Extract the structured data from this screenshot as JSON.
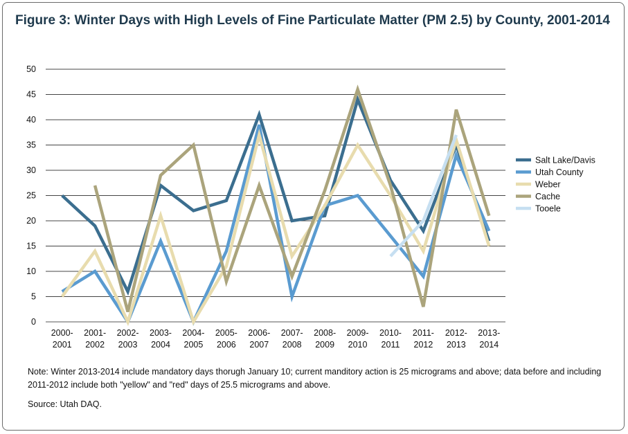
{
  "title": "Figure 3: Winter Days with High Levels of Fine Particulate Matter (PM 2.5) by County, 2001-2014",
  "note": "Note: Winter 2013-2014 include mandatory days thorugh January 10; current manditory action is 25 micrograms and above; data before and including 2011-2012 include both \"yellow\" and \"red\" days of 25.5 micrograms and above.",
  "source": "Source: Utah DAQ.",
  "chart_data": {
    "type": "line",
    "title": "Figure 3: Winter Days with High Levels of Fine Particulate Matter (PM 2.5) by County, 2001-2014",
    "xlabel": "",
    "ylabel": "",
    "ylim": [
      0,
      50
    ],
    "yticks": [
      0,
      5,
      10,
      15,
      20,
      25,
      30,
      35,
      40,
      45,
      50
    ],
    "grid": true,
    "legend_position": "right",
    "categories": [
      [
        "2000-",
        "2001"
      ],
      [
        "2001-",
        "2002"
      ],
      [
        "2002-",
        "2003"
      ],
      [
        "2003-",
        "2004"
      ],
      [
        "2004-",
        "2005"
      ],
      [
        "2005-",
        "2006"
      ],
      [
        "2006-",
        "2007"
      ],
      [
        "2007-",
        "2008"
      ],
      [
        "2008-",
        "2009"
      ],
      [
        "2009-",
        "2010"
      ],
      [
        "2010-",
        "2011"
      ],
      [
        "2011-",
        "2012"
      ],
      [
        "2012-",
        "2013"
      ],
      [
        "2013-",
        "2014"
      ]
    ],
    "series": [
      {
        "name": "Salt Lake/Davis",
        "color": "#3b6e8f",
        "values": [
          25,
          19,
          6,
          27,
          22,
          24,
          41,
          20,
          21,
          44,
          28,
          18,
          35,
          16
        ]
      },
      {
        "name": "Utah County",
        "color": "#5a9bd0",
        "values": [
          6,
          10,
          0,
          16,
          0,
          14,
          39,
          5,
          23,
          25,
          17,
          9,
          33,
          18
        ]
      },
      {
        "name": "Weber",
        "color": "#e8dcae",
        "values": [
          5,
          14,
          0,
          21,
          0,
          11,
          37,
          13,
          23,
          35,
          25,
          14,
          36,
          15
        ]
      },
      {
        "name": "Cache",
        "color": "#aba47c",
        "values": [
          null,
          27,
          2,
          29,
          35,
          8,
          27,
          9,
          26,
          46,
          27,
          3,
          42,
          21
        ]
      },
      {
        "name": "Tooele",
        "color": "#c6dff1",
        "values": [
          null,
          null,
          null,
          null,
          null,
          null,
          null,
          null,
          null,
          null,
          13,
          20,
          37,
          null
        ]
      }
    ]
  }
}
